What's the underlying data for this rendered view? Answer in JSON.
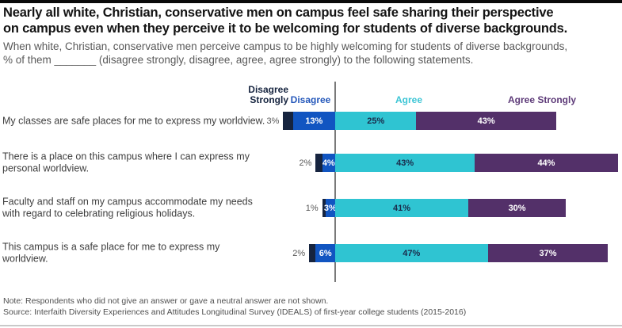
{
  "chart_data": {
    "type": "bar",
    "variant": "horizontal-diverging-stacked",
    "unit": "%",
    "title": "Nearly all white, Christian, conservative men on campus feel safe sharing their perspective\non campus even when they perceive it to be welcoming for students of diverse backgrounds.",
    "subtitle": "When white, Christian, conservative men perceive campus to be highly welcoming for students of diverse backgrounds,\n% of them _______ (disagree strongly, disagree, agree, agree strongly) to the following statements.",
    "legend": [
      "Disagree Strongly",
      "Disagree",
      "Agree",
      "Agree Strongly"
    ],
    "categories": [
      "My classes are safe places for me to express my worldview.",
      "There is a place on this campus where I can express my\npersonal worldview.",
      "Faculty and staff on my campus accommodate my needs\nwith regard to celebrating religious holidays.",
      "This campus is a safe place for me to express my\nworldview."
    ],
    "series": [
      {
        "key": "disagree-strongly",
        "name": "Disagree Strongly",
        "color": "#16243f",
        "label_color": "#595959",
        "label_position": "outside-left",
        "values": [
          3,
          2,
          1,
          2
        ]
      },
      {
        "key": "disagree",
        "name": "Disagree",
        "color": "#1155c1",
        "label_color": "#ffffff",
        "label_position": "inside",
        "values": [
          13,
          4,
          3,
          6
        ]
      },
      {
        "key": "agree",
        "name": "Agree",
        "color": "#2fc4d2",
        "label_color": "#1a2a4a",
        "label_position": "inside",
        "values": [
          25,
          43,
          41,
          47
        ]
      },
      {
        "key": "agree-strongly",
        "name": "Agree Strongly",
        "color": "#533069",
        "label_color": "#ffffff",
        "label_position": "inside",
        "values": [
          43,
          44,
          30,
          37
        ]
      }
    ],
    "layout_hints": {
      "baseline": "zero line separates disagree (left) from agree (right)",
      "value_label_format": "percent",
      "legend_position": "top"
    }
  },
  "footer": {
    "note": "Note: Respondents who did not give an answer or gave a neutral answer are not shown.",
    "source": "Source: Interfaith Diversity Experiences and Attitudes Longitudinal Survey (IDEALS) of first-year college students (2015-2016)"
  },
  "colors": {
    "disagree_strongly": "#16243f",
    "disagree": "#1155c1",
    "agree": "#2fc4d2",
    "agree_strongly": "#533069",
    "axis_line": "#7a7a7a",
    "top_rule": "#0a0a0a"
  }
}
